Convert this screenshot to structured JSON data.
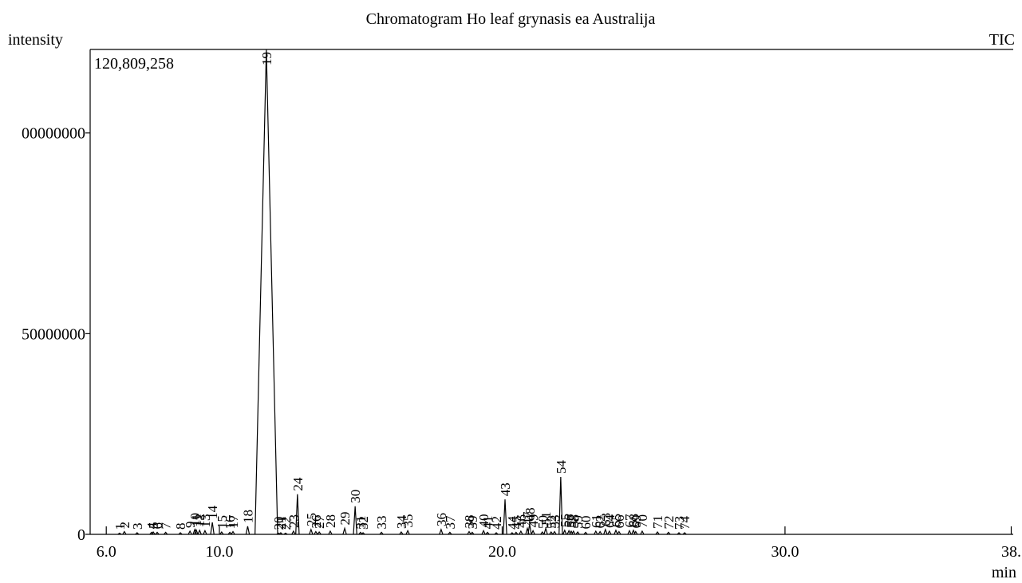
{
  "chart_data": {
    "type": "chromatogram",
    "title": "Chromatogram Ho leaf grynasis ea Australija",
    "y_label": "intensity",
    "trace_label": "TIC",
    "x_label": "min",
    "max_annotation": "120,809,258",
    "color": "#000000",
    "xlim": [
      5.43,
      38.07
    ],
    "ylim": [
      0,
      120809258
    ],
    "xticks": [
      {
        "value": 6,
        "label": "6.0"
      },
      {
        "value": 10,
        "label": "10.0"
      },
      {
        "value": 20,
        "label": "20.0"
      },
      {
        "value": 30,
        "label": "30.0"
      },
      {
        "value": 38,
        "label": "38."
      }
    ],
    "yticks": [
      0,
      50000000,
      {
        "value": 100000000,
        "label": "00000000"
      }
    ],
    "peak_labels": [
      "1",
      "2",
      "3",
      "4",
      "5",
      "6",
      "7",
      "8",
      "9",
      "10",
      "11",
      "12",
      "13",
      "14",
      "15",
      "16",
      "17",
      "18",
      "19",
      "20",
      "21",
      "22",
      "23",
      "24",
      "25",
      "26",
      "27",
      "28",
      "29",
      "30",
      "31",
      "32",
      "33",
      "34",
      "35",
      "36",
      "37",
      "38",
      "39",
      "40",
      "41",
      "42",
      "43",
      "44",
      "45",
      "46",
      "47",
      "48",
      "49",
      "50",
      "51",
      "52",
      "53",
      "54",
      "55",
      "56",
      "57",
      "58",
      "59",
      "60",
      "61",
      "62",
      "63",
      "64",
      "65",
      "66",
      "67",
      "68",
      "69",
      "70",
      "71",
      "72",
      "73",
      "74"
    ],
    "x": [
      6.47,
      6.64,
      7.09,
      7.6,
      7.66,
      7.8,
      8.1,
      8.62,
      8.96,
      9.13,
      9.18,
      9.3,
      9.49,
      9.75,
      10.08,
      10.37,
      10.48,
      11.0,
      11.66,
      12.09,
      12.17,
      12.34,
      12.62,
      12.76,
      13.24,
      13.41,
      13.53,
      13.92,
      14.43,
      14.8,
      14.99,
      15.08,
      15.73,
      16.43,
      16.66,
      17.84,
      18.15,
      18.83,
      18.94,
      19.34,
      19.48,
      19.79,
      20.1,
      20.35,
      20.49,
      20.66,
      20.89,
      20.97,
      21.09,
      21.42,
      21.54,
      21.73,
      21.85,
      22.07,
      22.21,
      22.36,
      22.44,
      22.52,
      22.67,
      22.95,
      23.31,
      23.46,
      23.65,
      23.79,
      24.02,
      24.13,
      24.5,
      24.64,
      24.72,
      24.95,
      25.49,
      25.88,
      26.25,
      26.45
    ],
    "values": [
      300000,
      700000,
      400000,
      500000,
      600000,
      500000,
      500000,
      400000,
      800000,
      1200000,
      1100000,
      1000000,
      900000,
      3000000,
      600000,
      500000,
      700000,
      2000000,
      120809258,
      300000,
      400000,
      300000,
      800000,
      10000000,
      1200000,
      700000,
      600000,
      800000,
      1500000,
      7000000,
      500000,
      400000,
      500000,
      600000,
      900000,
      1200000,
      500000,
      700000,
      500000,
      900000,
      500000,
      400000,
      8700000,
      400000,
      500000,
      800000,
      1500000,
      2500000,
      900000,
      600000,
      1500000,
      600000,
      700000,
      14300000,
      1000000,
      900000,
      800000,
      800000,
      600000,
      500000,
      800000,
      700000,
      1200000,
      800000,
      1000000,
      700000,
      900000,
      1000000,
      700000,
      800000,
      600000,
      500000,
      400000,
      400000
    ]
  }
}
